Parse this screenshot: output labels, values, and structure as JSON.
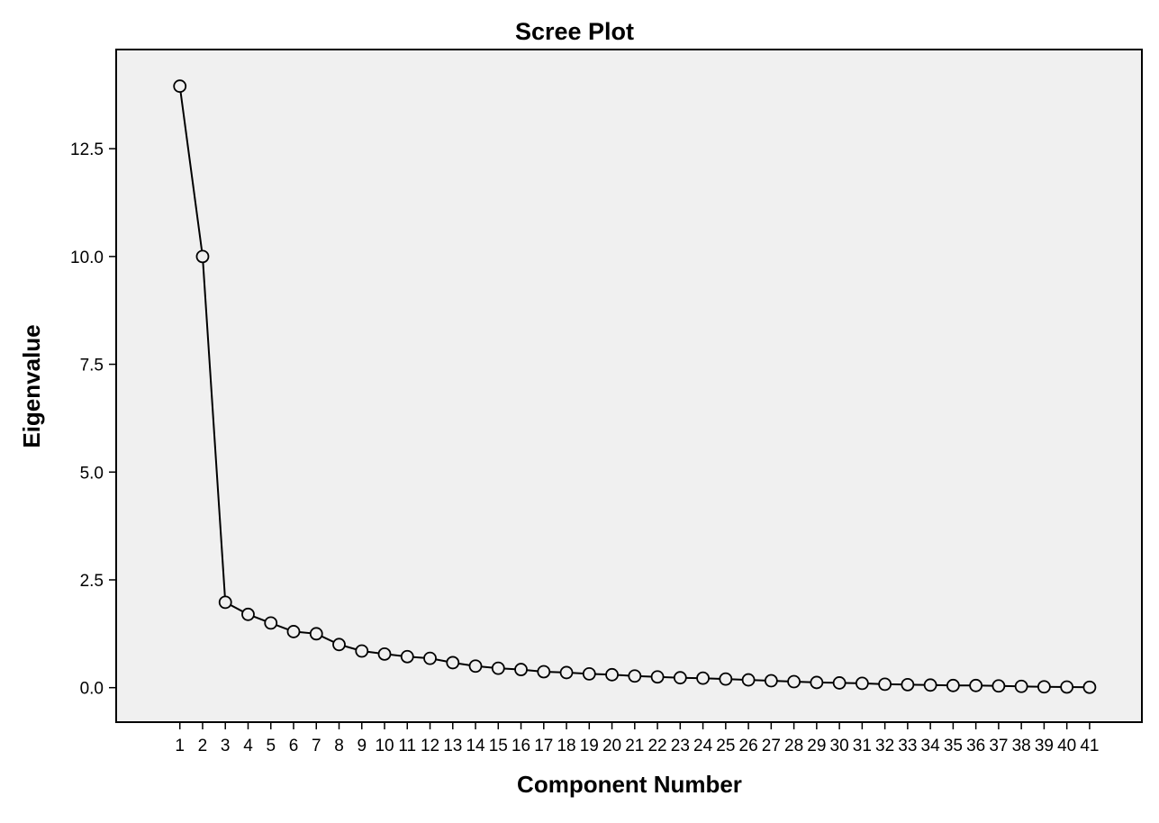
{
  "chart_data": {
    "type": "line",
    "title": "Scree Plot",
    "xlabel": "Component Number",
    "ylabel": "Eigenvalue",
    "x": [
      1,
      2,
      3,
      4,
      5,
      6,
      7,
      8,
      9,
      10,
      11,
      12,
      13,
      14,
      15,
      16,
      17,
      18,
      19,
      20,
      21,
      22,
      23,
      24,
      25,
      26,
      27,
      28,
      29,
      30,
      31,
      32,
      33,
      34,
      35,
      36,
      37,
      38,
      39,
      40,
      41
    ],
    "series": [
      {
        "values": [
          13.95,
          10.0,
          1.98,
          1.7,
          1.5,
          1.3,
          1.25,
          1.0,
          0.85,
          0.78,
          0.72,
          0.68,
          0.58,
          0.5,
          0.45,
          0.42,
          0.37,
          0.35,
          0.32,
          0.3,
          0.27,
          0.25,
          0.23,
          0.22,
          0.2,
          0.18,
          0.16,
          0.14,
          0.12,
          0.11,
          0.1,
          0.08,
          0.07,
          0.06,
          0.05,
          0.05,
          0.04,
          0.03,
          0.02,
          0.015,
          0.01
        ]
      }
    ],
    "yticks": [
      "0.0",
      "2.5",
      "5.0",
      "7.5",
      "10.0",
      "12.5"
    ],
    "ylim": [
      -0.8,
      14.8
    ],
    "xlim": [
      -1.8,
      43.3
    ],
    "grid": false,
    "legend": "none",
    "colors": {
      "plot_background": "#F0F0F0",
      "page_background": "#FFFFFF",
      "line": "#000000",
      "marker_stroke": "#000000",
      "marker_fill": "#F0F0F0"
    }
  }
}
